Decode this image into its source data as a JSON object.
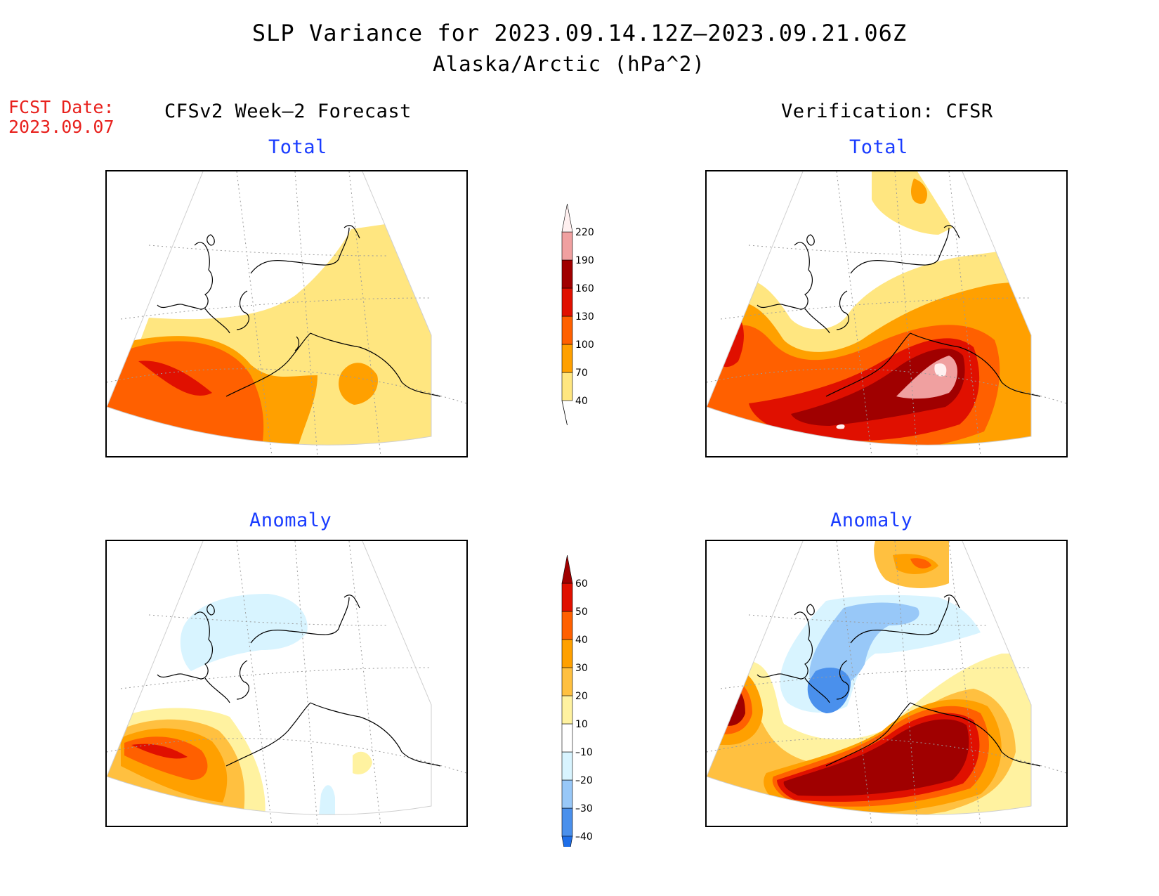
{
  "title": {
    "line1": "SLP Variance for 2023.09.14.12Z–2023.09.21.06Z",
    "line2": "Alaska/Arctic (hPa^2)"
  },
  "forecast_date": {
    "label": "FCST Date:",
    "value": "2023.09.07"
  },
  "columns": {
    "left": "CFSv2 Week–2 Forecast",
    "right": "Verification: CFSR"
  },
  "panels": {
    "top_left": "Total",
    "top_right": "Total",
    "bottom_left": "Anomaly",
    "bottom_right": "Anomaly"
  },
  "colorbars": {
    "total": {
      "levels": [
        "40",
        "70",
        "100",
        "130",
        "160",
        "190",
        "220"
      ],
      "colors": [
        "#ffe680",
        "#ffa000",
        "#ff6000",
        "#e01000",
        "#a00000",
        "#f0a0a0",
        "#fff0f0"
      ]
    },
    "anomaly": {
      "levels": [
        "–40",
        "–30",
        "–20",
        "–10",
        "10",
        "20",
        "30",
        "40",
        "50",
        "60"
      ],
      "colors": [
        "#1e6ee8",
        "#4a90ec",
        "#98c8f8",
        "#d8f4ff",
        "#ffffff",
        "#fff2a0",
        "#ffc040",
        "#ffa000",
        "#ff6000",
        "#e01000",
        "#a00000"
      ]
    }
  }
}
